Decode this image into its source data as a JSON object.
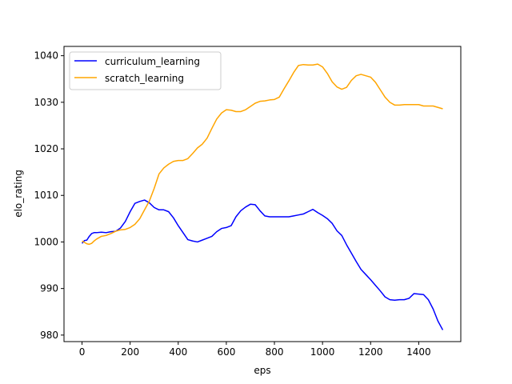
{
  "chart_data": {
    "type": "line",
    "title": "",
    "xlabel": "eps",
    "ylabel": "elo_rating",
    "xlim": [
      -75,
      1575
    ],
    "ylim": [
      978.6,
      1042.0
    ],
    "xticks": [
      0,
      200,
      400,
      600,
      800,
      1000,
      1200,
      1400
    ],
    "yticks": [
      980,
      990,
      1000,
      1010,
      1020,
      1030,
      1040
    ],
    "grid": false,
    "legend": "top-left",
    "series": [
      {
        "name": "curriculum_learning",
        "color": "#0000ff",
        "x": [
          0,
          10,
          20,
          30,
          40,
          50,
          60,
          80,
          100,
          120,
          140,
          160,
          180,
          200,
          220,
          240,
          260,
          270,
          280,
          300,
          320,
          340,
          360,
          380,
          400,
          420,
          440,
          460,
          480,
          500,
          520,
          540,
          560,
          580,
          600,
          620,
          640,
          660,
          680,
          700,
          720,
          740,
          760,
          780,
          800,
          820,
          840,
          860,
          880,
          900,
          920,
          940,
          960,
          980,
          1000,
          1020,
          1040,
          1060,
          1080,
          1100,
          1120,
          1140,
          1160,
          1180,
          1200,
          1220,
          1240,
          1260,
          1280,
          1300,
          1320,
          1340,
          1360,
          1380,
          1400,
          1420,
          1440,
          1460,
          1480,
          1500
        ],
        "y": [
          999.7,
          1000.3,
          1000.4,
          1001.2,
          1001.8,
          1002.0,
          1002.0,
          1002.1,
          1002.0,
          1002.2,
          1002.3,
          1003.0,
          1004.4,
          1006.5,
          1008.3,
          1008.7,
          1009.0,
          1008.7,
          1008.4,
          1007.4,
          1006.9,
          1006.9,
          1006.5,
          1005.2,
          1003.5,
          1002.0,
          1000.5,
          1000.2,
          1000.0,
          1000.4,
          1000.8,
          1001.2,
          1002.2,
          1002.9,
          1003.1,
          1003.5,
          1005.4,
          1006.7,
          1007.5,
          1008.1,
          1008.0,
          1006.7,
          1005.6,
          1005.4,
          1005.4,
          1005.4,
          1005.4,
          1005.4,
          1005.6,
          1005.8,
          1006.0,
          1006.5,
          1007.0,
          1006.3,
          1005.7,
          1005.0,
          1004.0,
          1002.4,
          1001.4,
          999.4,
          997.6,
          995.8,
          994.1,
          993.0,
          991.9,
          990.7,
          989.5,
          988.2,
          987.6,
          987.5,
          987.6,
          987.6,
          987.9,
          988.9,
          988.8,
          988.7,
          987.6,
          985.6,
          983.0,
          981.1
        ]
      },
      {
        "name": "scratch_learning",
        "color": "#ffa500",
        "x": [
          0,
          10,
          20,
          30,
          40,
          50,
          60,
          80,
          100,
          120,
          140,
          160,
          180,
          200,
          220,
          240,
          260,
          280,
          300,
          320,
          340,
          360,
          380,
          400,
          420,
          440,
          460,
          480,
          500,
          520,
          540,
          560,
          580,
          600,
          620,
          640,
          660,
          680,
          700,
          720,
          740,
          760,
          780,
          800,
          820,
          840,
          860,
          880,
          900,
          920,
          940,
          960,
          980,
          1000,
          1020,
          1040,
          1060,
          1080,
          1100,
          1120,
          1140,
          1160,
          1180,
          1200,
          1220,
          1240,
          1260,
          1280,
          1300,
          1320,
          1340,
          1360,
          1380,
          1400,
          1420,
          1440,
          1460,
          1480,
          1500
        ],
        "y": [
          1000.2,
          999.9,
          999.6,
          999.5,
          999.7,
          1000.2,
          1000.6,
          1001.2,
          1001.4,
          1001.8,
          1002.3,
          1002.6,
          1002.7,
          1003.1,
          1003.8,
          1005.0,
          1006.9,
          1008.8,
          1011.5,
          1014.6,
          1015.9,
          1016.7,
          1017.3,
          1017.5,
          1017.5,
          1017.9,
          1019.0,
          1020.2,
          1021.0,
          1022.3,
          1024.4,
          1026.4,
          1027.7,
          1028.4,
          1028.3,
          1028.0,
          1028.0,
          1028.4,
          1029.1,
          1029.8,
          1030.2,
          1030.3,
          1030.5,
          1030.6,
          1031.1,
          1032.9,
          1034.6,
          1036.4,
          1037.9,
          1038.1,
          1038.0,
          1038.0,
          1038.2,
          1037.6,
          1036.2,
          1034.4,
          1033.3,
          1032.8,
          1033.2,
          1034.7,
          1035.7,
          1036.0,
          1035.7,
          1035.4,
          1034.3,
          1032.7,
          1031.1,
          1030.0,
          1029.4,
          1029.4,
          1029.5,
          1029.5,
          1029.5,
          1029.5,
          1029.2,
          1029.2,
          1029.2,
          1028.9,
          1028.6
        ]
      }
    ]
  }
}
